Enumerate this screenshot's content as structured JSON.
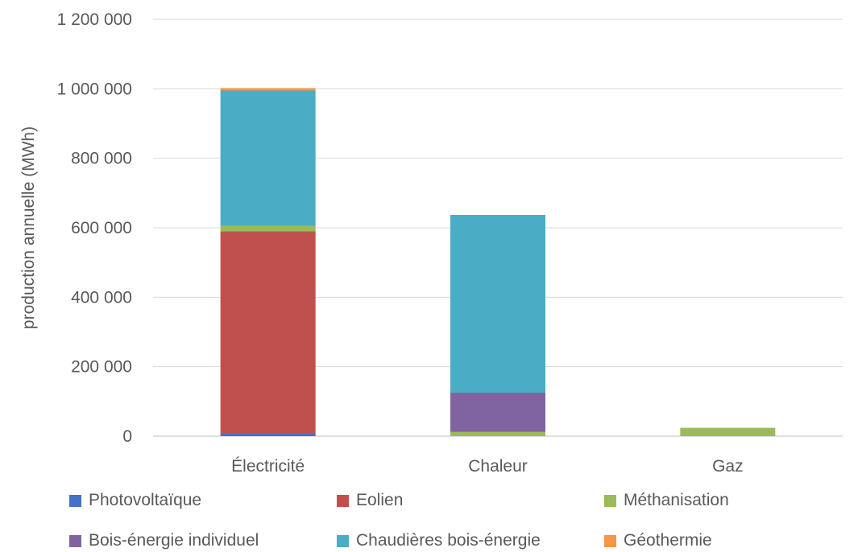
{
  "chart_data": {
    "type": "bar",
    "stacked": true,
    "title": "",
    "xlabel": "",
    "ylabel": "production annuelle (MWh)",
    "ylim": [
      0,
      1200000
    ],
    "yticks": [
      "0",
      "200 000",
      "400 000",
      "600 000",
      "800 000",
      "1 000 000",
      "1 200 000"
    ],
    "ytick_values": [
      0,
      200000,
      400000,
      600000,
      800000,
      1000000,
      1200000
    ],
    "grid": true,
    "legend_position": "bottom",
    "categories": [
      "Électricité",
      "Chaleur",
      "Gaz"
    ],
    "series": [
      {
        "name": "Photovoltaïque",
        "color": "#4472C4",
        "values": [
          7000,
          0,
          0
        ]
      },
      {
        "name": "Eolien",
        "color": "#C0504D",
        "values": [
          583000,
          0,
          0
        ]
      },
      {
        "name": "Méthanisation",
        "color": "#9BBB59",
        "values": [
          15000,
          12000,
          24000
        ]
      },
      {
        "name": "Bois-énergie individuel",
        "color": "#8064A2",
        "values": [
          0,
          113000,
          0
        ]
      },
      {
        "name": "Chaudières bois-énergie",
        "color": "#4BACC6",
        "values": [
          390000,
          512000,
          0
        ]
      },
      {
        "name": "Géothermie",
        "color": "#F79646",
        "values": [
          7000,
          0,
          0
        ]
      }
    ]
  }
}
